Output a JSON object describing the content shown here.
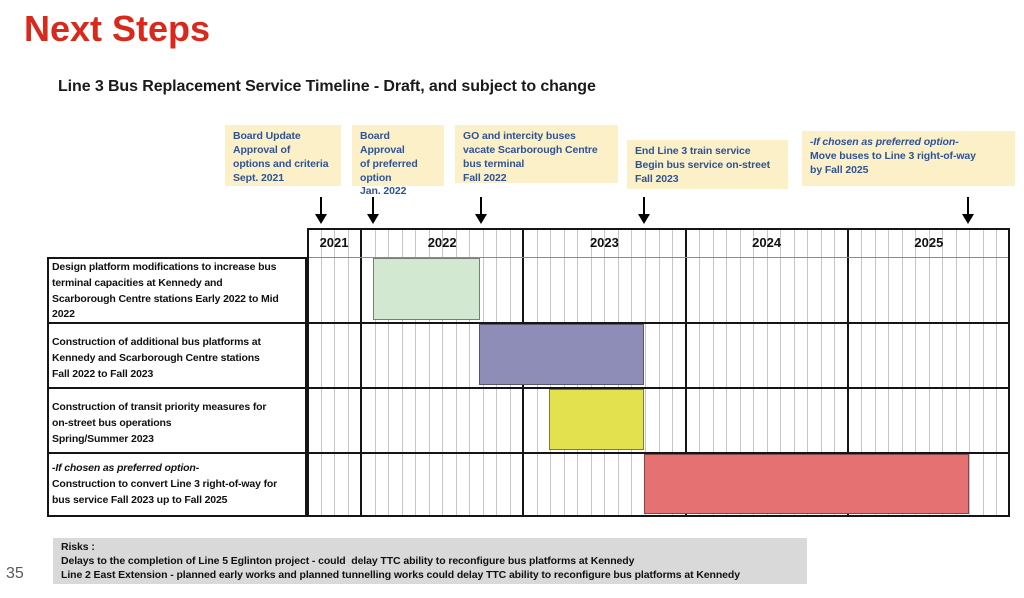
{
  "slide": {
    "title": "Next Steps",
    "subtitle": "Line 3 Bus Replacement Service Timeline - Draft, and subject to change",
    "page_number": "35"
  },
  "colors": {
    "title_red": "#d9291c",
    "callout_bg": "#fbf0c7",
    "callout_text": "#2f5496",
    "bar_green": "#d3e8d0",
    "bar_purple": "#8e8db8",
    "bar_yellow": "#e3e14e",
    "bar_red": "#e57173",
    "risks_bg": "#d9d9d9",
    "grid_month_line": "#c6c6c6",
    "grid_year_line": "#151515"
  },
  "callouts": [
    {
      "text": "Board Update\nApproval of\noptions and criteria\nSept. 2021",
      "arrow_month": 1.0
    },
    {
      "text": "Board Approval\nof preferred\noption\nJan. 2022",
      "arrow_month": 4.9
    },
    {
      "text": "GO and intercity buses\nvacate Scarborough Centre\nbus terminal\nFall 2022",
      "arrow_month": 12.9
    },
    {
      "text": "End Line 3 train service\nBegin bus service on-street\nFall 2023",
      "arrow_month": 24.9
    },
    {
      "italic": "-If chosen as preferred option-",
      "text": "Move buses to Line 3 right-of-way\nby Fall 2025",
      "arrow_month": 48.9
    }
  ],
  "chart_data": {
    "type": "bar",
    "subtype": "gantt-timeline",
    "title": "Line 3 Bus Replacement Service Timeline - Draft, and subject to change",
    "timeline": {
      "start": "Sep 2021",
      "end": "Dec 2025",
      "total_months": 52,
      "unit": "month"
    },
    "years": [
      {
        "label": "2021",
        "months": 4
      },
      {
        "label": "2022",
        "months": 12
      },
      {
        "label": "2023",
        "months": 12
      },
      {
        "label": "2024",
        "months": 12
      },
      {
        "label": "2025",
        "months": 12
      }
    ],
    "rows": [
      {
        "task": "Design platform modifications to increase bus\nterminal capacities at Kennedy and\nScarborough Centre stations Early 2022 to Mid\n2022",
        "bar": {
          "start_month": 4.9,
          "end_month": 12.8,
          "period": "Early 2022 to Mid 2022",
          "color": "#d3e8d0"
        }
      },
      {
        "task": "Construction of additional bus platforms at\nKennedy and Scarborough Centre stations\nFall 2022 to Fall 2023",
        "bar": {
          "start_month": 12.7,
          "end_month": 24.9,
          "period": "Fall 2022 to Fall 2023",
          "color": "#8e8db8"
        }
      },
      {
        "task": "Construction of transit priority measures for\non-street bus operations\nSpring/Summer 2023",
        "bar": {
          "start_month": 17.9,
          "end_month": 24.9,
          "period": "Spring/Summer 2023",
          "color": "#e3e14e"
        }
      },
      {
        "task_italic_prefix": "-If chosen as preferred option-",
        "task": "Construction to convert Line 3 right-of-way for\nbus service Fall 2023 up to Fall 2025",
        "bar": {
          "start_month": 24.9,
          "end_month": 49.0,
          "period": "Fall 2023 up to Fall 2025",
          "color": "#e57173"
        }
      }
    ],
    "milestones": [
      {
        "label": "Board Update Approval of options and criteria Sept. 2021",
        "month": 1.0
      },
      {
        "label": "Board Approval of preferred option Jan. 2022",
        "month": 4.9
      },
      {
        "label": "GO and intercity buses vacate Scarborough Centre bus terminal Fall 2022",
        "month": 12.9
      },
      {
        "label": "End Line 3 train service Begin bus service on-street Fall 2023",
        "month": 24.9
      },
      {
        "label": "-If chosen as preferred option- Move buses to Line 3 right-of-way by Fall 2025",
        "month": 48.9
      }
    ],
    "layout_hints": {
      "grid": "monthly gridlines, bold year separators",
      "legend": "none",
      "bars_fill_row_height": true
    }
  },
  "risks": {
    "lines": [
      "Risks :",
      "Delays to the completion of Line 5 Eglinton project - could  delay TTC ability to reconfigure bus platforms at Kennedy",
      "Line 2 East Extension - planned early works and planned tunnelling works could delay TTC ability to reconfigure bus platforms at Kennedy"
    ]
  }
}
